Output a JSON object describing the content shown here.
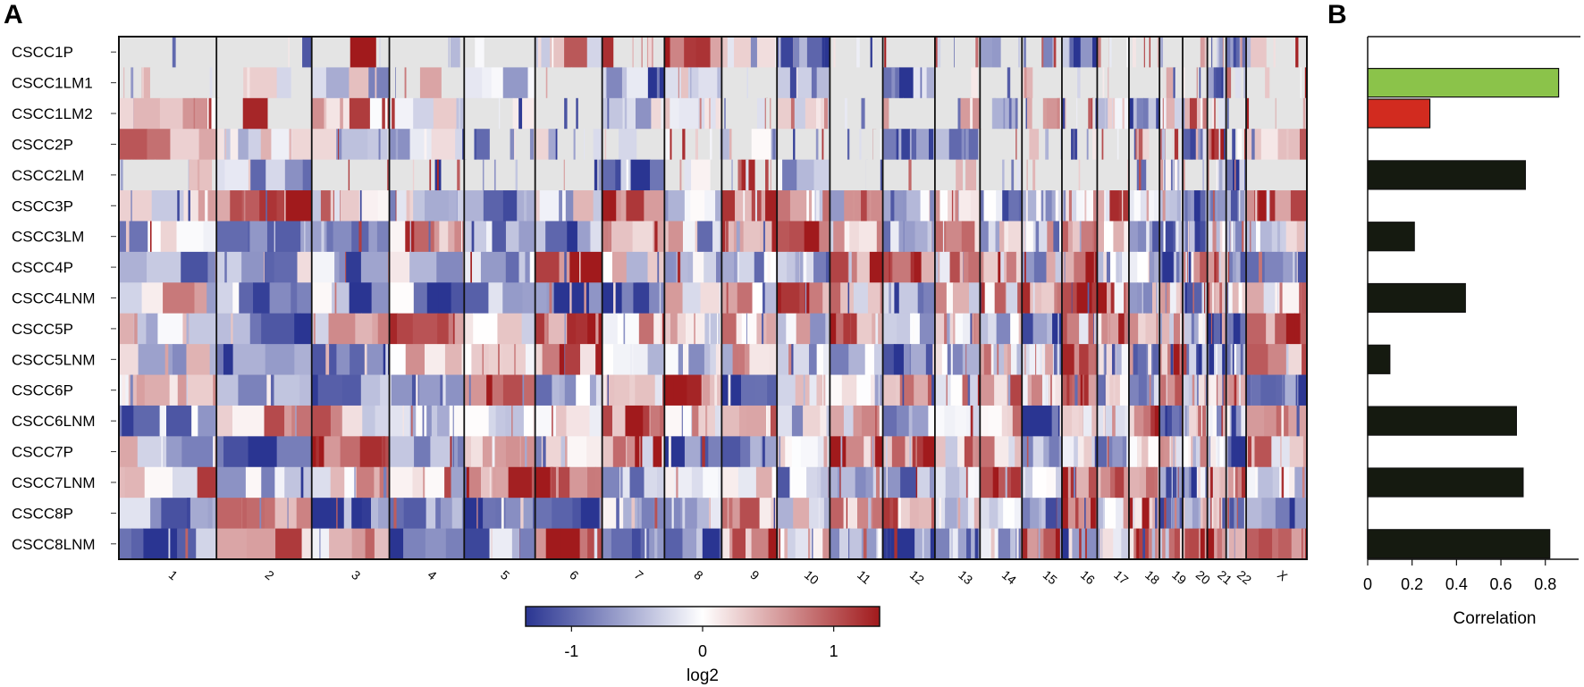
{
  "panel_a": {
    "letter": "A",
    "rows": [
      "CSCC1P",
      "CSCC1LM1",
      "CSCC1LM2",
      "CSCC2P",
      "CSCC2LM",
      "CSCC3P",
      "CSCC3LM",
      "CSCC4P",
      "CSCC4LNM",
      "CSCC5P",
      "CSCC5LNM",
      "CSCC6P",
      "CSCC6LNM",
      "CSCC7P",
      "CSCC7LNM",
      "CSCC8P",
      "CSCC8LNM"
    ],
    "chromosomes": [
      {
        "label": "1",
        "rel_len": 249
      },
      {
        "label": "2",
        "rel_len": 243
      },
      {
        "label": "3",
        "rel_len": 198
      },
      {
        "label": "4",
        "rel_len": 191
      },
      {
        "label": "5",
        "rel_len": 181
      },
      {
        "label": "6",
        "rel_len": 171
      },
      {
        "label": "7",
        "rel_len": 159
      },
      {
        "label": "8",
        "rel_len": 146
      },
      {
        "label": "9",
        "rel_len": 141
      },
      {
        "label": "10",
        "rel_len": 135
      },
      {
        "label": "11",
        "rel_len": 135
      },
      {
        "label": "12",
        "rel_len": 133
      },
      {
        "label": "13",
        "rel_len": 115
      },
      {
        "label": "14",
        "rel_len": 107
      },
      {
        "label": "15",
        "rel_len": 102
      },
      {
        "label": "16",
        "rel_len": 90
      },
      {
        "label": "17",
        "rel_len": 81
      },
      {
        "label": "18",
        "rel_len": 78
      },
      {
        "label": "19",
        "rel_len": 59
      },
      {
        "label": "20",
        "rel_len": 63
      },
      {
        "label": "21",
        "rel_len": 48
      },
      {
        "label": "22",
        "rel_len": 51
      },
      {
        "label": "X",
        "rel_len": 155
      }
    ],
    "colorbar": {
      "label": "log2",
      "min": -1.35,
      "max": 1.35,
      "ticks": [
        -1,
        0,
        1
      ],
      "tick_labels": [
        "-1",
        "0",
        "1"
      ],
      "colors": {
        "low": "#2a3592",
        "mid": "#ffffff",
        "high": "#a11a1c",
        "neutral": "#e4e4e4"
      }
    },
    "seed": 20240611
  },
  "chart_data": {
    "type": "bar",
    "orientation": "horizontal",
    "panel_letter": "B",
    "categories": [
      "CSCC1P",
      "CSCC1LM1",
      "CSCC1LM2",
      "CSCC2P",
      "CSCC2LM",
      "CSCC3P",
      "CSCC3LM",
      "CSCC4P",
      "CSCC4LNM",
      "CSCC5P",
      "CSCC5LNM",
      "CSCC6P",
      "CSCC6LNM",
      "CSCC7P",
      "CSCC7LNM",
      "CSCC8P",
      "CSCC8LNM"
    ],
    "bars": [
      {
        "row": 1,
        "value": 0.86,
        "color": "#8bc34a"
      },
      {
        "row": 2,
        "value": 0.28,
        "color": "#d22b1f"
      },
      {
        "row": 4,
        "value": 0.71,
        "color": "#151a10"
      },
      {
        "row": 6,
        "value": 0.21,
        "color": "#151a10"
      },
      {
        "row": 8,
        "value": 0.44,
        "color": "#151a10"
      },
      {
        "row": 10,
        "value": 0.1,
        "color": "#151a10"
      },
      {
        "row": 12,
        "value": 0.67,
        "color": "#151a10"
      },
      {
        "row": 14,
        "value": 0.7,
        "color": "#151a10"
      },
      {
        "row": 16,
        "value": 0.82,
        "color": "#151a10"
      }
    ],
    "xlabel": "Correlation",
    "xlim": [
      0,
      0.95
    ],
    "xticks": [
      0,
      0.2,
      0.4,
      0.6,
      0.8
    ],
    "xtick_labels": [
      "0",
      "0.2",
      "0.4",
      "0.6",
      "0.8"
    ]
  }
}
